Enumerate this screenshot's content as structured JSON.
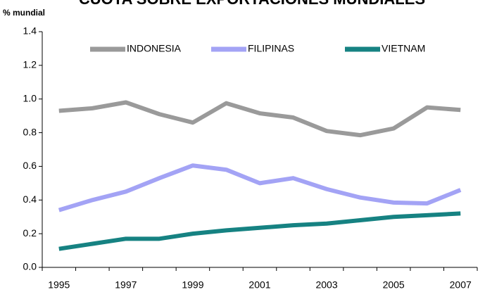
{
  "chart_data": {
    "type": "line",
    "title": "CUOTA SOBRE EXPORTACIONES MUNDIALES",
    "y_label": "% mundial",
    "categories": [
      "1995",
      null,
      "1997",
      null,
      "1999",
      null,
      "2001",
      null,
      "2003",
      null,
      "2005",
      null,
      "2007"
    ],
    "series": [
      {
        "name": "INDONESIA",
        "color": "#9a9a9a",
        "values": [
          0.93,
          0.945,
          0.98,
          0.91,
          0.86,
          0.975,
          0.915,
          0.89,
          0.81,
          0.785,
          0.825,
          0.95,
          0.935
        ]
      },
      {
        "name": "FILIPINAS",
        "color": "#a3a3f5",
        "values": [
          0.34,
          0.4,
          0.45,
          0.53,
          0.605,
          0.58,
          0.5,
          0.53,
          0.465,
          0.415,
          0.385,
          0.38,
          0.46
        ]
      },
      {
        "name": "VIETNAM",
        "color": "#168282",
        "values": [
          0.11,
          0.14,
          0.17,
          0.17,
          0.2,
          0.22,
          0.235,
          0.25,
          0.26,
          0.28,
          0.3,
          0.31,
          0.32
        ]
      }
    ],
    "ylim": [
      0,
      1.4
    ],
    "yticks": [
      {
        "value": 0,
        "label": "0.0"
      },
      0.2,
      0.4,
      0.6,
      0.8,
      {
        "value": 1,
        "label": "1.0"
      },
      1.2,
      1.4
    ],
    "grid": false,
    "legend": "top"
  }
}
